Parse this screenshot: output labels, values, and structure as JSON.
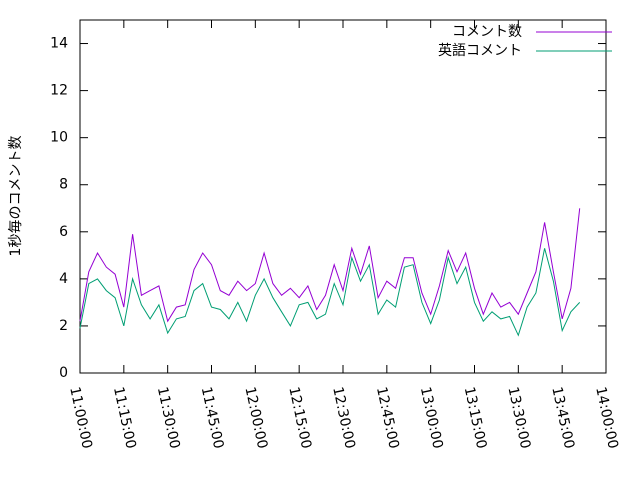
{
  "chart_data": {
    "type": "line",
    "ylabel": "1秒毎のコメント数",
    "x": [
      "11:00:00",
      "11:03:00",
      "11:06:00",
      "11:09:00",
      "11:12:00",
      "11:15:00",
      "11:18:00",
      "11:21:00",
      "11:24:00",
      "11:27:00",
      "11:30:00",
      "11:33:00",
      "11:36:00",
      "11:39:00",
      "11:42:00",
      "11:45:00",
      "11:48:00",
      "11:51:00",
      "11:54:00",
      "11:57:00",
      "12:00:00",
      "12:03:00",
      "12:06:00",
      "12:09:00",
      "12:12:00",
      "12:15:00",
      "12:18:00",
      "12:21:00",
      "12:24:00",
      "12:27:00",
      "12:30:00",
      "12:33:00",
      "12:36:00",
      "12:39:00",
      "12:42:00",
      "12:45:00",
      "12:48:00",
      "12:51:00",
      "12:54:00",
      "12:57:00",
      "13:00:00",
      "13:03:00",
      "13:06:00",
      "13:09:00",
      "13:12:00",
      "13:15:00",
      "13:18:00",
      "13:21:00",
      "13:24:00",
      "13:27:00",
      "13:30:00",
      "13:33:00",
      "13:36:00",
      "13:39:00",
      "13:42:00",
      "13:45:00",
      "13:48:00",
      "13:51:00"
    ],
    "series": [
      {
        "name": "コメント数",
        "color": "#9400d3",
        "values": [
          2.2,
          4.3,
          5.1,
          4.5,
          4.2,
          2.8,
          5.9,
          3.3,
          3.5,
          3.7,
          2.2,
          2.8,
          2.9,
          4.4,
          5.1,
          4.6,
          3.5,
          3.3,
          3.9,
          3.5,
          3.8,
          5.1,
          3.8,
          3.3,
          3.6,
          3.2,
          3.7,
          2.7,
          3.3,
          4.6,
          3.5,
          5.3,
          4.2,
          5.4,
          3.2,
          3.9,
          3.6,
          4.9,
          4.9,
          3.4,
          2.5,
          3.7,
          5.2,
          4.3,
          5.1,
          3.6,
          2.5,
          3.4,
          2.8,
          3.0,
          2.5,
          3.4,
          4.3,
          6.4,
          4.3,
          2.3,
          3.6,
          7.0
        ]
      },
      {
        "name": "英語コメント",
        "color": "#009e73",
        "values": [
          1.9,
          3.8,
          4.0,
          3.5,
          3.2,
          2.0,
          4.0,
          2.9,
          2.3,
          2.9,
          1.7,
          2.3,
          2.4,
          3.5,
          3.8,
          2.8,
          2.7,
          2.3,
          3.0,
          2.2,
          3.3,
          4.0,
          3.2,
          2.6,
          2.0,
          2.9,
          3.0,
          2.3,
          2.5,
          3.8,
          2.9,
          4.9,
          3.9,
          4.6,
          2.5,
          3.1,
          2.8,
          4.5,
          4.6,
          3.0,
          2.1,
          3.1,
          4.9,
          3.8,
          4.5,
          3.0,
          2.2,
          2.6,
          2.3,
          2.4,
          1.6,
          2.8,
          3.4,
          5.3,
          3.9,
          1.8,
          2.6,
          3.0
        ]
      }
    ],
    "xlim": [
      "11:00:00",
      "14:00:00"
    ],
    "xticks": [
      "11:00:00",
      "11:15:00",
      "11:30:00",
      "11:45:00",
      "12:00:00",
      "12:15:00",
      "12:30:00",
      "12:45:00",
      "13:00:00",
      "13:15:00",
      "13:30:00",
      "13:45:00",
      "14:00:00"
    ],
    "ylim": [
      0,
      15
    ],
    "yticks": [
      0,
      2,
      4,
      6,
      8,
      10,
      12,
      14
    ],
    "legend": "top-right"
  }
}
